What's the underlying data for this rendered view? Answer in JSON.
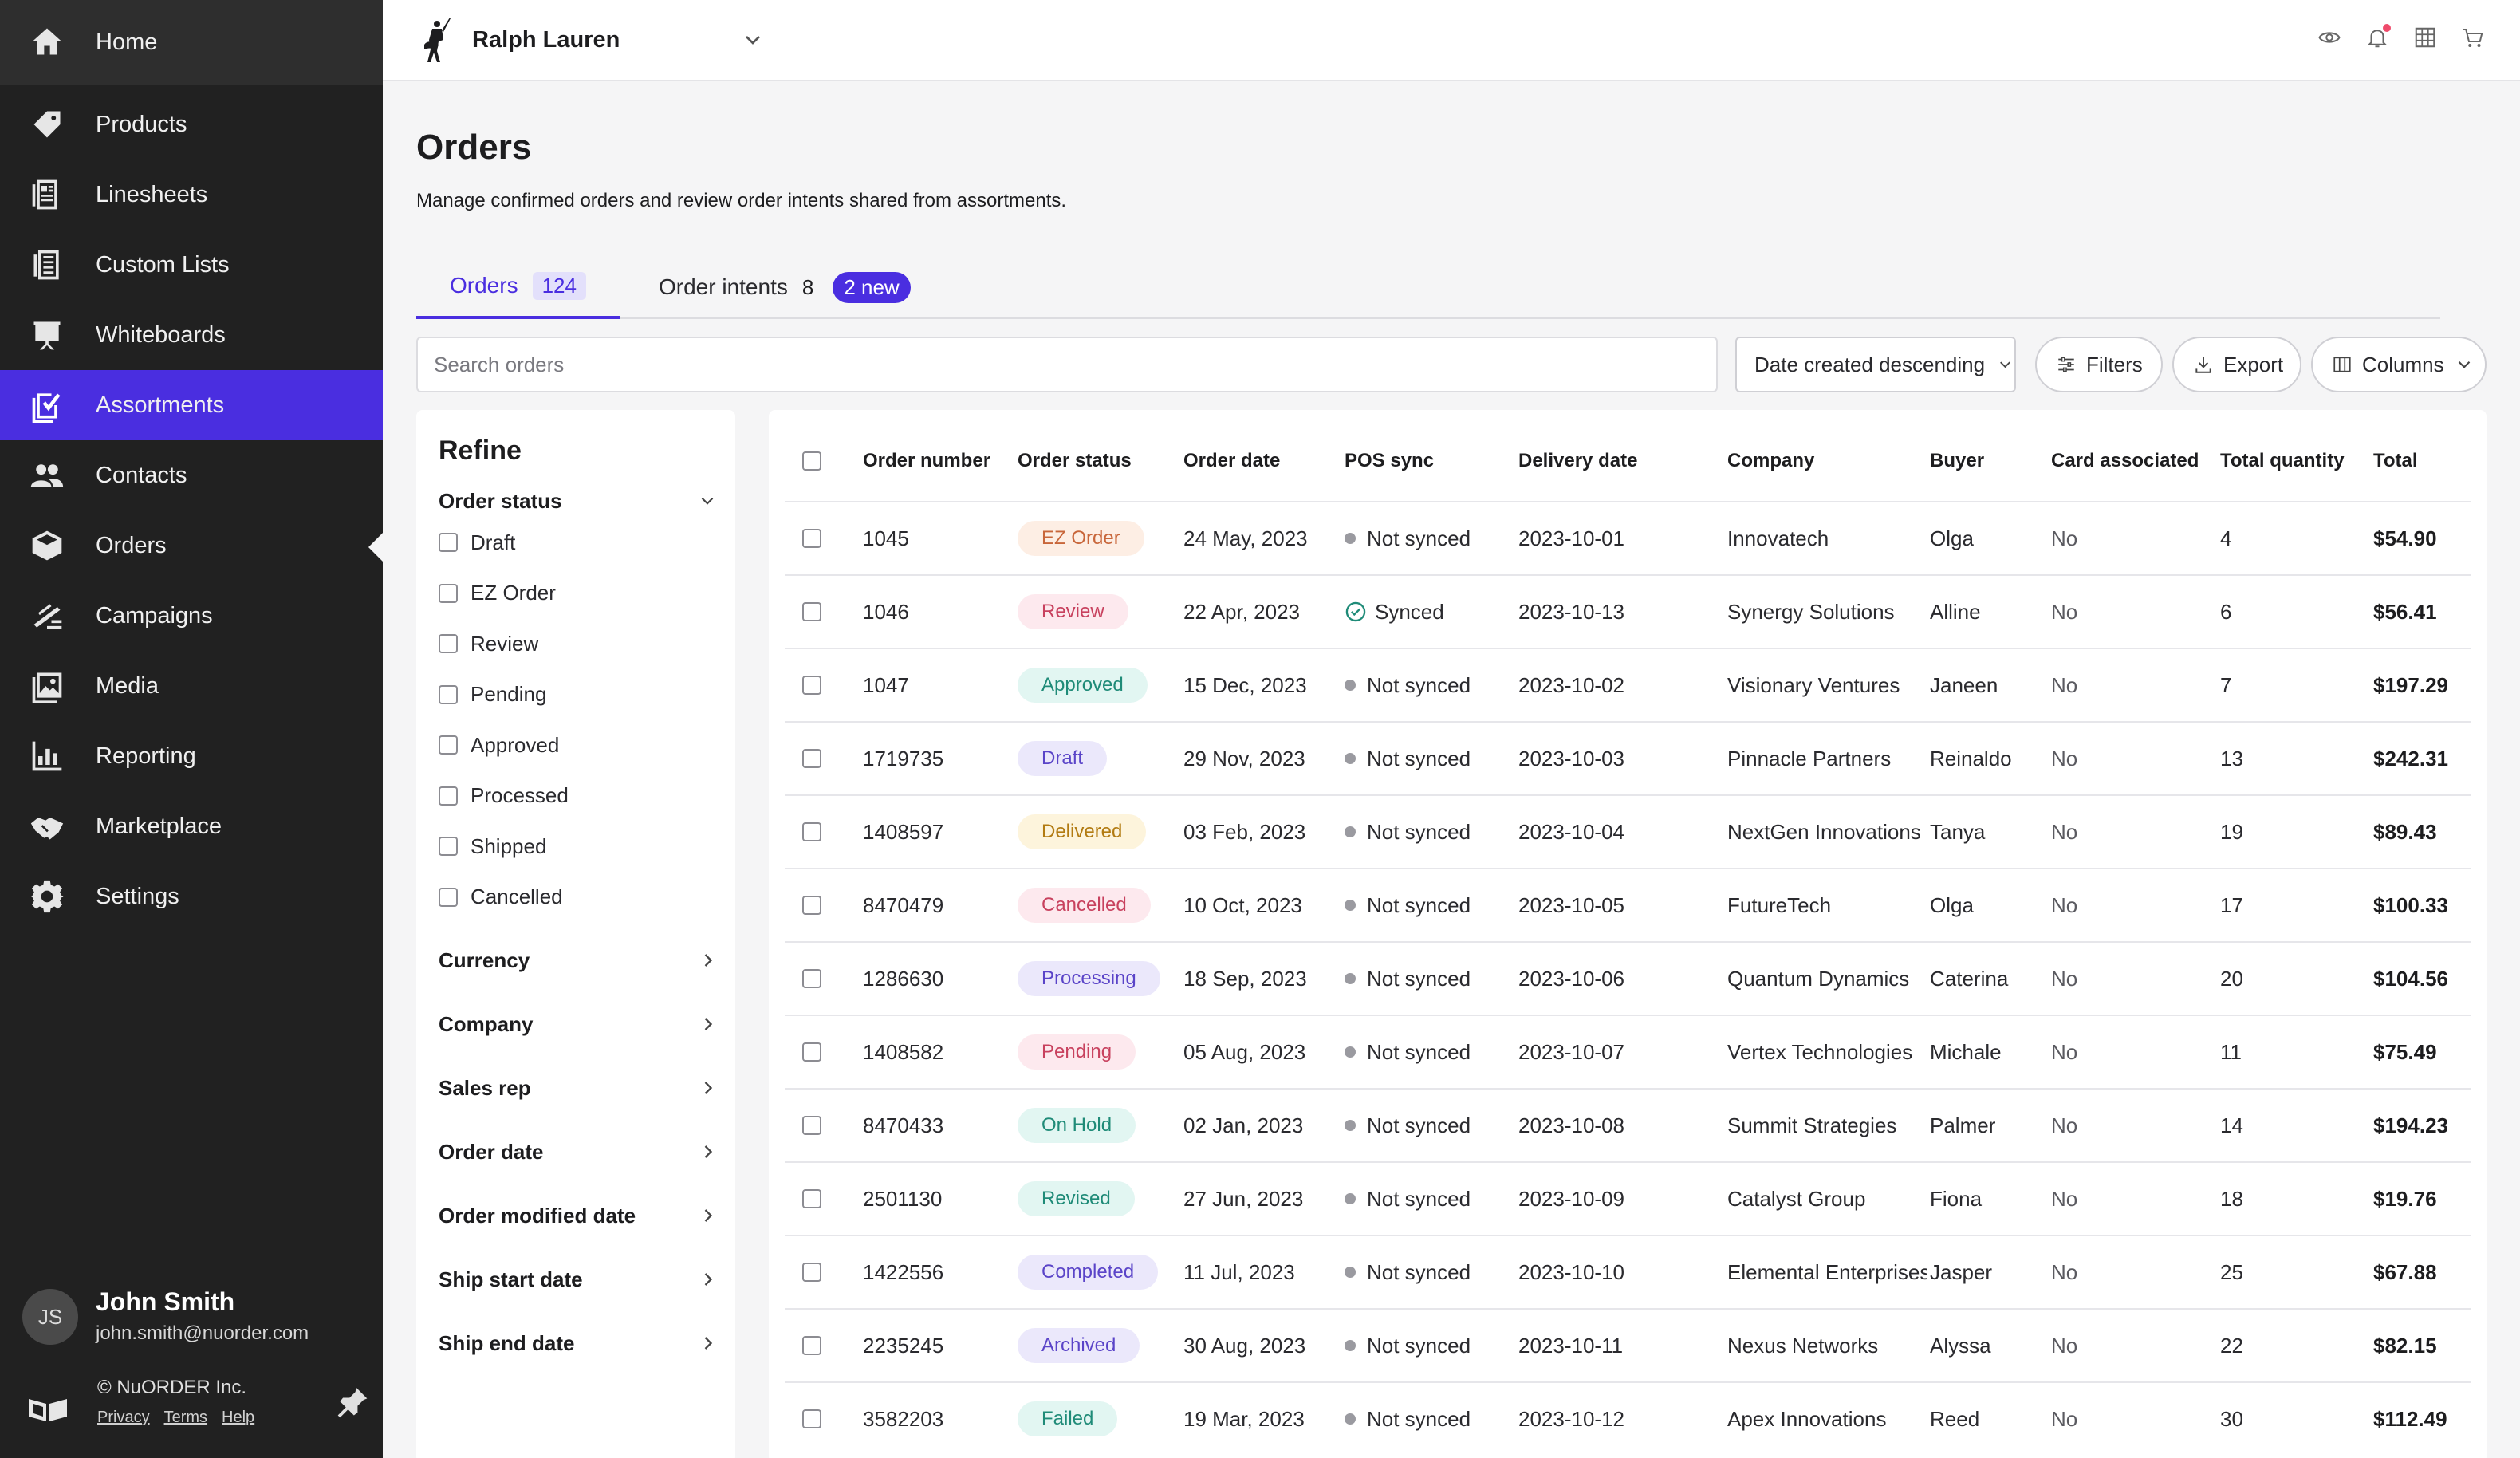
{
  "sidebar": {
    "items": [
      {
        "label": "Home",
        "icon": "home-icon"
      },
      {
        "label": "Products",
        "icon": "tag-icon"
      },
      {
        "label": "Linesheets",
        "icon": "linesheet-icon"
      },
      {
        "label": "Custom Lists",
        "icon": "list-icon"
      },
      {
        "label": "Whiteboards",
        "icon": "whiteboard-icon"
      },
      {
        "label": "Assortments",
        "icon": "assortment-icon"
      },
      {
        "label": "Contacts",
        "icon": "contacts-icon"
      },
      {
        "label": "Orders",
        "icon": "box-icon"
      },
      {
        "label": "Campaigns",
        "icon": "campaign-icon"
      },
      {
        "label": "Media",
        "icon": "image-icon"
      },
      {
        "label": "Reporting",
        "icon": "bar-chart-icon"
      },
      {
        "label": "Marketplace",
        "icon": "handshake-icon"
      },
      {
        "label": "Settings",
        "icon": "gear-icon"
      }
    ],
    "active_index": 5,
    "user": {
      "initials": "JS",
      "name": "John Smith",
      "email": "john.smith@nuorder.com"
    },
    "footer": {
      "copyright": "© NuORDER Inc.",
      "links": [
        "Privacy",
        "Terms",
        "Help"
      ]
    }
  },
  "topbar": {
    "brand_name": "Ralph Lauren",
    "icons": [
      "eye-icon",
      "bell-icon",
      "grid-icon",
      "cart-icon"
    ]
  },
  "page": {
    "title": "Orders",
    "subtitle": "Manage confirmed orders and review order intents shared from assortments."
  },
  "tabs": [
    {
      "label": "Orders",
      "count": "124"
    },
    {
      "label": "Order intents",
      "count": "8",
      "badge": "2 new"
    }
  ],
  "toolbar": {
    "search_placeholder": "Search orders",
    "sort_label": "Date created descending",
    "filters_label": "Filters",
    "export_label": "Export",
    "columns_label": "Columns"
  },
  "refine": {
    "title": "Refine",
    "status_heading": "Order status",
    "status_options": [
      "Draft",
      "EZ Order",
      "Review",
      "Pending",
      "Approved",
      "Processed",
      "Shipped",
      "Cancelled"
    ],
    "sections": [
      "Currency",
      "Company",
      "Sales rep",
      "Order date",
      "Order modified date",
      "Ship start date",
      "Ship end date"
    ]
  },
  "table": {
    "columns": [
      "Order number",
      "Order status",
      "Order date",
      "POS sync",
      "Delivery date",
      "Company",
      "Buyer",
      "Card associated",
      "Total quantity",
      "Total"
    ],
    "rows": [
      {
        "number": "1045",
        "status": "EZ Order",
        "status_bg": "#fdeee4",
        "status_fg": "#c8663a",
        "date": "24 May, 2023",
        "sync": "Not synced",
        "delivery": "2023-10-01",
        "company": "Innovatech",
        "buyer": "Olga",
        "card": "No",
        "qty": "4",
        "total": "$54.90"
      },
      {
        "number": "1046",
        "status": "Review",
        "status_bg": "#fde9ee",
        "status_fg": "#c8415e",
        "date": "22 Apr, 2023",
        "sync": "Synced",
        "delivery": "2023-10-13",
        "company": "Synergy Solutions",
        "buyer": "Alline",
        "card": "No",
        "qty": "6",
        "total": "$56.41"
      },
      {
        "number": "1047",
        "status": "Approved",
        "status_bg": "#e2f6f2",
        "status_fg": "#1f8b78",
        "date": "15 Dec, 2023",
        "sync": "Not synced",
        "delivery": "2023-10-02",
        "company": "Visionary Ventures",
        "buyer": "Janeen",
        "card": "No",
        "qty": "7",
        "total": "$197.29"
      },
      {
        "number": "1719735",
        "status": "Draft",
        "status_bg": "#ebe8fb",
        "status_fg": "#5a44c8",
        "date": "29 Nov, 2023",
        "sync": "Not synced",
        "delivery": "2023-10-03",
        "company": "Pinnacle Partners",
        "buyer": "Reinaldo",
        "card": "No",
        "qty": "13",
        "total": "$242.31"
      },
      {
        "number": "1408597",
        "status": "Delivered",
        "status_bg": "#fdf4dc",
        "status_fg": "#b27b12",
        "date": "03 Feb, 2023",
        "sync": "Not synced",
        "delivery": "2023-10-04",
        "company": "NextGen Innovations",
        "buyer": "Tanya",
        "card": "No",
        "qty": "19",
        "total": "$89.43"
      },
      {
        "number": "8470479",
        "status": "Cancelled",
        "status_bg": "#fde9ee",
        "status_fg": "#c8415e",
        "date": "10 Oct, 2023",
        "sync": "Not synced",
        "delivery": "2023-10-05",
        "company": "FutureTech",
        "buyer": "Olga",
        "card": "No",
        "qty": "17",
        "total": "$100.33"
      },
      {
        "number": "1286630",
        "status": "Processing",
        "status_bg": "#ebe8fb",
        "status_fg": "#5a44c8",
        "date": "18 Sep, 2023",
        "sync": "Not synced",
        "delivery": "2023-10-06",
        "company": "Quantum Dynamics",
        "buyer": "Caterina",
        "card": "No",
        "qty": "20",
        "total": "$104.56"
      },
      {
        "number": "1408582",
        "status": "Pending",
        "status_bg": "#fde9ee",
        "status_fg": "#c8415e",
        "date": "05 Aug, 2023",
        "sync": "Not synced",
        "delivery": "2023-10-07",
        "company": "Vertex Technologies",
        "buyer": "Michale",
        "card": "No",
        "qty": "11",
        "total": "$75.49"
      },
      {
        "number": "8470433",
        "status": "On Hold",
        "status_bg": "#e2f6f2",
        "status_fg": "#1f8b78",
        "date": "02 Jan, 2023",
        "sync": "Not synced",
        "delivery": "2023-10-08",
        "company": "Summit Strategies",
        "buyer": "Palmer",
        "card": "No",
        "qty": "14",
        "total": "$194.23"
      },
      {
        "number": "2501130",
        "status": "Revised",
        "status_bg": "#e2f6f2",
        "status_fg": "#1f8b78",
        "date": "27 Jun, 2023",
        "sync": "Not synced",
        "delivery": "2023-10-09",
        "company": "Catalyst Group",
        "buyer": "Fiona",
        "card": "No",
        "qty": "18",
        "total": "$19.76"
      },
      {
        "number": "1422556",
        "status": "Completed",
        "status_bg": "#ebe8fb",
        "status_fg": "#5a44c8",
        "date": "11 Jul, 2023",
        "sync": "Not synced",
        "delivery": "2023-10-10",
        "company": "Elemental Enterprises",
        "buyer": "Jasper",
        "card": "No",
        "qty": "25",
        "total": "$67.88"
      },
      {
        "number": "2235245",
        "status": "Archived",
        "status_bg": "#ebe8fb",
        "status_fg": "#5a44c8",
        "date": "30 Aug, 2023",
        "sync": "Not synced",
        "delivery": "2023-10-11",
        "company": "Nexus Networks",
        "buyer": "Alyssa",
        "card": "No",
        "qty": "22",
        "total": "$82.15"
      },
      {
        "number": "3582203",
        "status": "Failed",
        "status_bg": "#e2f6f2",
        "status_fg": "#1f8b78",
        "date": "19 Mar, 2023",
        "sync": "Not synced",
        "delivery": "2023-10-12",
        "company": "Apex Innovations",
        "buyer": "Reed",
        "card": "No",
        "qty": "30",
        "total": "$112.49"
      }
    ]
  },
  "colors": {
    "accent": "#4a2ee0",
    "sidebar": "#212121",
    "synced": "#1f8b78"
  }
}
